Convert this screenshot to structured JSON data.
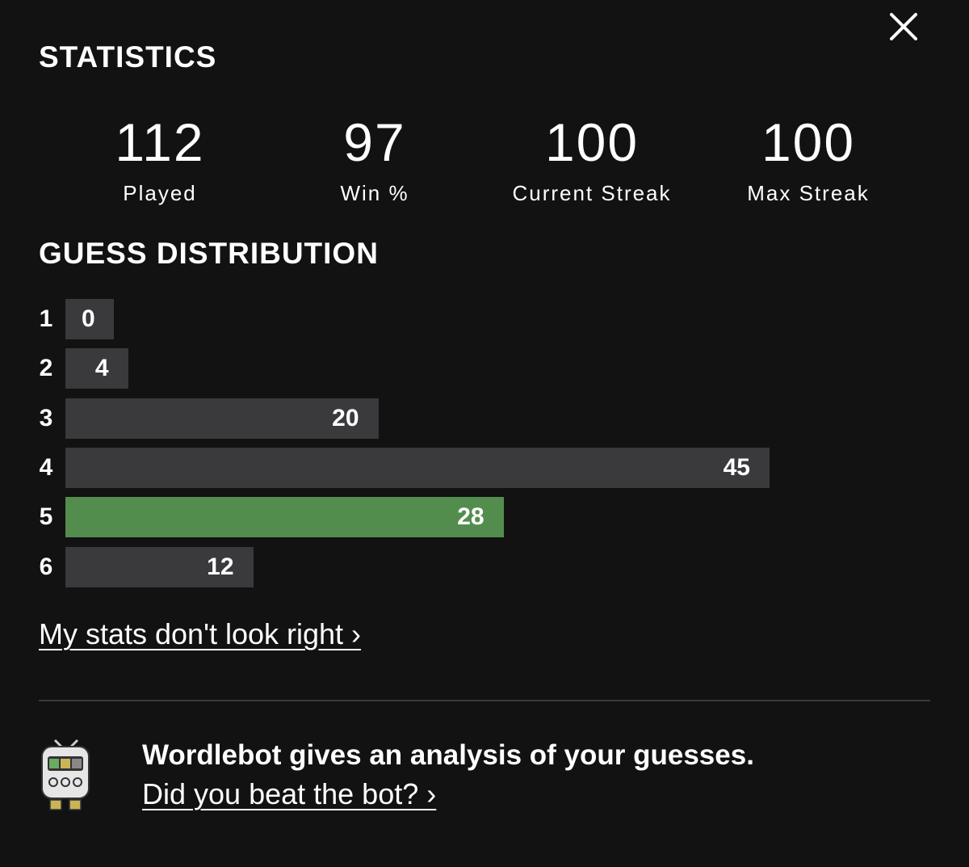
{
  "header": {
    "title": "STATISTICS"
  },
  "stats": [
    {
      "value": 112,
      "label": "Played"
    },
    {
      "value": 97,
      "label": "Win %"
    },
    {
      "value": 100,
      "label": "Current Streak"
    },
    {
      "value": 100,
      "label": "Max Streak"
    }
  ],
  "distribution": {
    "title": "GUESS DISTRIBUTION",
    "rows": [
      {
        "guess": "1",
        "count": 0,
        "color": "#3a3a3c"
      },
      {
        "guess": "2",
        "count": 4,
        "color": "#3a3a3c"
      },
      {
        "guess": "3",
        "count": 20,
        "color": "#3a3a3c"
      },
      {
        "guess": "4",
        "count": 45,
        "color": "#3a3a3c"
      },
      {
        "guess": "5",
        "count": 28,
        "color": "#538d4e"
      },
      {
        "guess": "6",
        "count": 12,
        "color": "#3a3a3c"
      }
    ]
  },
  "stats_link": "My stats don't look right ›",
  "footer": {
    "text": "Wordlebot gives an analysis of your guesses.",
    "link": "Did you beat the bot? ›"
  }
}
